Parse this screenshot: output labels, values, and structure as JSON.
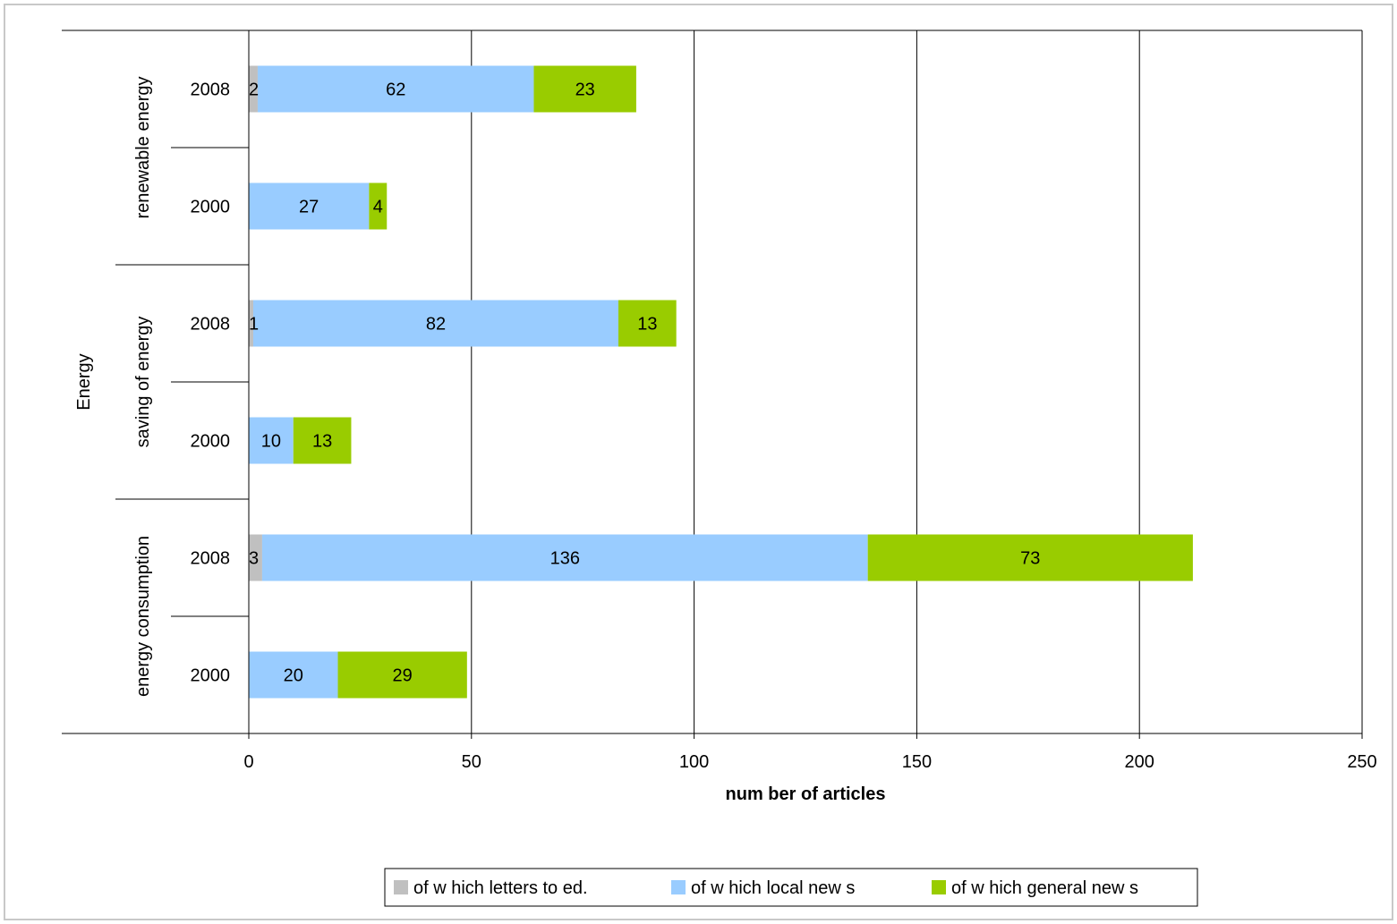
{
  "chart_data": {
    "type": "bar",
    "orientation": "horizontal",
    "stacked": true,
    "outer_category": "Energy",
    "groups": [
      {
        "label": "energy consumption",
        "rows": [
          {
            "year": "2000",
            "values": [
              null,
              20,
              29
            ]
          },
          {
            "year": "2008",
            "values": [
              3,
              136,
              73
            ]
          }
        ]
      },
      {
        "label": "saving of energy",
        "rows": [
          {
            "year": "2000",
            "values": [
              null,
              10,
              13
            ]
          },
          {
            "year": "2008",
            "values": [
              1,
              82,
              13
            ]
          }
        ]
      },
      {
        "label": "renewable energy",
        "rows": [
          {
            "year": "2000",
            "values": [
              null,
              27,
              4
            ]
          },
          {
            "year": "2008",
            "values": [
              2,
              62,
              23
            ]
          }
        ]
      }
    ],
    "series": [
      {
        "name": "of w hich letters to ed.",
        "color": "#c0c0c0"
      },
      {
        "name": "of w hich local new s",
        "color": "#99ccff"
      },
      {
        "name": "of w hich general new s",
        "color": "#99cc00"
      }
    ],
    "xlabel": "num ber of articles",
    "xlim": [
      0,
      250
    ],
    "xticks": [
      "0",
      "50",
      "100",
      "150",
      "200",
      "250"
    ],
    "grid": "vertical",
    "legend": "bottom"
  }
}
